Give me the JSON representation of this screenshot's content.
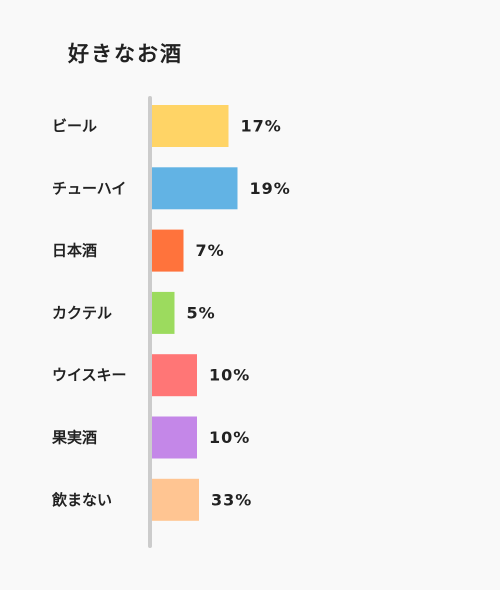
{
  "chart_data": {
    "type": "bar",
    "orientation": "horizontal",
    "title": "好きなお酒",
    "xlabel": "",
    "ylabel": "",
    "grid": false,
    "categories": [
      "ビール",
      "チューハイ",
      "日本酒",
      "カクテル",
      "ウイスキー",
      "果実酒",
      "飲まない"
    ],
    "values": [
      17,
      19,
      7,
      5,
      10,
      10,
      33
    ],
    "value_labels": [
      "17%",
      "19%",
      "7%",
      "5%",
      "10%",
      "10%",
      "33%"
    ],
    "colors": [
      "#ffd466",
      "#62b3e4",
      "#ff733c",
      "#9cdb5e",
      "#ff7676",
      "#c487e8",
      "#ffc592"
    ]
  }
}
